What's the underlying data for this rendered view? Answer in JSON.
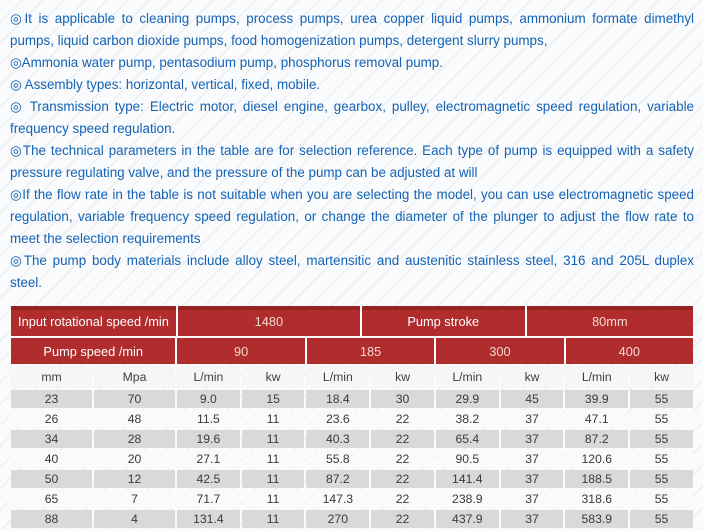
{
  "colors": {
    "header_red": "#b12c2c",
    "header_red_dark": "#952121",
    "text_blue": "#1463b5",
    "row_gray": "#d9d9d9",
    "row_light": "#fafafa"
  },
  "content": {
    "bullets": [
      "◎It is applicable to cleaning pumps, process pumps, urea copper liquid pumps, ammonium formate dimethyl pumps, liquid carbon dioxide pumps, food homogenization pumps, detergent slurry pumps,",
      "◎Ammonia water pump, pentasodium pump, phosphorus removal pump.",
      "◎ Assembly types: horizontal, vertical, fixed, mobile.",
      "◎ Transmission type: Electric motor, diesel engine, gearbox, pulley, electromagnetic speed regulation, variable frequency speed regulation.",
      "◎The technical parameters in the table are for selection reference. Each type of pump is equipped with a safety pressure regulating valve, and the pressure of the pump can be adjusted at will",
      "◎If the flow rate in the table is not suitable when you are selecting the model, you can use electromagnetic speed regulation, variable frequency speed regulation, or change the diameter of the plunger to adjust the flow rate to meet the selection requirements",
      "◎The pump body materials include alloy steel, martensitic and austenitic stainless steel, 316 and 205L duplex steel."
    ]
  },
  "table": {
    "header_row1": [
      {
        "label": "Input rotational speed /min"
      },
      {
        "label": "1480"
      },
      {
        "label": "Pump stroke"
      },
      {
        "label": "80mm"
      }
    ],
    "header_row2": [
      {
        "label": "Pump speed /min"
      },
      {
        "label": "90"
      },
      {
        "label": "185"
      },
      {
        "label": "300"
      },
      {
        "label": "400"
      }
    ],
    "unit_row": [
      "mm",
      "Mpa",
      "L/min",
      "kw",
      "L/min",
      "kw",
      "L/min",
      "kw",
      "L/min",
      "kw"
    ],
    "data_rows": [
      [
        "23",
        "70",
        "9.0",
        "15",
        "18.4",
        "30",
        "29.9",
        "45",
        "39.9",
        "55"
      ],
      [
        "26",
        "48",
        "11.5",
        "11",
        "23.6",
        "22",
        "38.2",
        "37",
        "47.1",
        "55"
      ],
      [
        "34",
        "28",
        "19.6",
        "11",
        "40.3",
        "22",
        "65.4",
        "37",
        "87.2",
        "55"
      ],
      [
        "40",
        "20",
        "27.1",
        "11",
        "55.8",
        "22",
        "90.5",
        "37",
        "120.6",
        "55"
      ],
      [
        "50",
        "12",
        "42.5",
        "11",
        "87.2",
        "22",
        "141.4",
        "37",
        "188.5",
        "55"
      ],
      [
        "65",
        "7",
        "71.7",
        "11",
        "147.3",
        "22",
        "238.9",
        "37",
        "318.6",
        "55"
      ],
      [
        "88",
        "4",
        "131.4",
        "11",
        "270",
        "22",
        "437.9",
        "37",
        "583.9",
        "55"
      ]
    ]
  }
}
